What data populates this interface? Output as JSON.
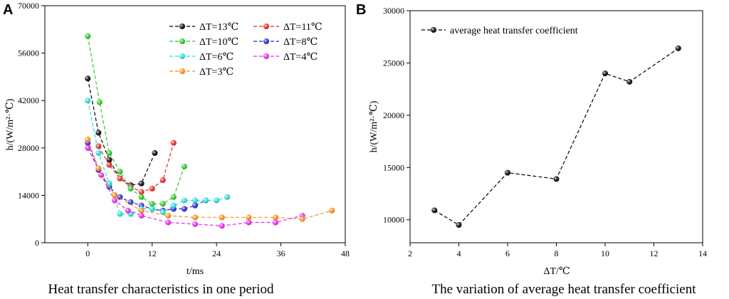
{
  "chart_data": [
    {
      "panel": "A",
      "type": "line",
      "caption": "Heat transfer characteristics in one period",
      "xlabel": "t/ms",
      "ylabel": "h/(W/m²·℃)",
      "xlim": [
        -8,
        48
      ],
      "ylim": [
        0,
        70000
      ],
      "xticks": [
        0,
        12,
        24,
        36,
        48
      ],
      "yticks": [
        0,
        14000,
        28000,
        42000,
        56000,
        70000
      ],
      "legend_position": "top-right",
      "series": [
        {
          "name": "ΔT=13℃",
          "color": "#000000",
          "x": [
            0,
            2,
            4,
            6,
            8,
            10,
            12.5
          ],
          "y": [
            48500,
            32500,
            24500,
            19000,
            17000,
            17500,
            26500
          ]
        },
        {
          "name": "ΔT=11℃",
          "color": "#ee2222",
          "x": [
            2,
            4,
            6,
            8,
            10,
            12,
            14,
            16
          ],
          "y": [
            28500,
            23000,
            19000,
            16500,
            15000,
            16000,
            18500,
            29500
          ]
        },
        {
          "name": "ΔT=10℃",
          "color": "#22cc22",
          "x": [
            0,
            2.2,
            4,
            6,
            8,
            10,
            12,
            14,
            16,
            18
          ],
          "y": [
            61000,
            41500,
            26500,
            21000,
            16000,
            13500,
            11500,
            11500,
            13500,
            22500
          ]
        },
        {
          "name": "ΔT=8℃",
          "color": "#2222dd",
          "x": [
            0,
            2,
            4,
            6,
            8,
            10,
            12,
            14,
            16,
            18,
            20,
            22
          ],
          "y": [
            29500,
            21500,
            16500,
            13500,
            12000,
            11000,
            10000,
            9500,
            10000,
            10000,
            11000,
            12500
          ]
        },
        {
          "name": "ΔT=6℃",
          "color": "#22dddd",
          "x": [
            0,
            2,
            4,
            6,
            8,
            10,
            12,
            14,
            16,
            18,
            20,
            22,
            24,
            26
          ],
          "y": [
            42000,
            26500,
            17500,
            8500,
            8500,
            10000,
            10000,
            9000,
            11000,
            12500,
            12500,
            12500,
            12500,
            13500
          ]
        },
        {
          "name": "ΔT=4℃",
          "color": "#ee22ee",
          "x": [
            0,
            2.5,
            5,
            7.5,
            10,
            15,
            20,
            25,
            30,
            35,
            40
          ],
          "y": [
            28000,
            20000,
            12500,
            9500,
            8000,
            6000,
            5500,
            5000,
            6000,
            6000,
            8000
          ]
        },
        {
          "name": "ΔT=3℃",
          "color": "#ff8c1a",
          "x": [
            0,
            2,
            5,
            10,
            15,
            20,
            25,
            30,
            35,
            40,
            45.5
          ],
          "y": [
            30500,
            22000,
            14000,
            9500,
            8000,
            7500,
            7500,
            7500,
            7500,
            7000,
            9500
          ]
        }
      ]
    },
    {
      "panel": "B",
      "type": "line",
      "caption": "The variation of average heat transfer coefficient",
      "xlabel": "ΔT/℃",
      "ylabel": "h/(W/m²·℃)",
      "xlim": [
        2,
        14
      ],
      "ylim": [
        7800,
        30000
      ],
      "xticks": [
        2,
        4,
        6,
        8,
        10,
        12,
        14
      ],
      "yticks": [
        10000,
        15000,
        20000,
        25000,
        30000
      ],
      "legend_position": "top-left",
      "series": [
        {
          "name": "average heat transfer coefficient",
          "color": "#000000",
          "x": [
            3,
            4,
            6,
            8,
            10,
            11,
            13
          ],
          "y": [
            10900,
            9500,
            14500,
            13900,
            24000,
            23200,
            26400
          ]
        }
      ]
    }
  ]
}
